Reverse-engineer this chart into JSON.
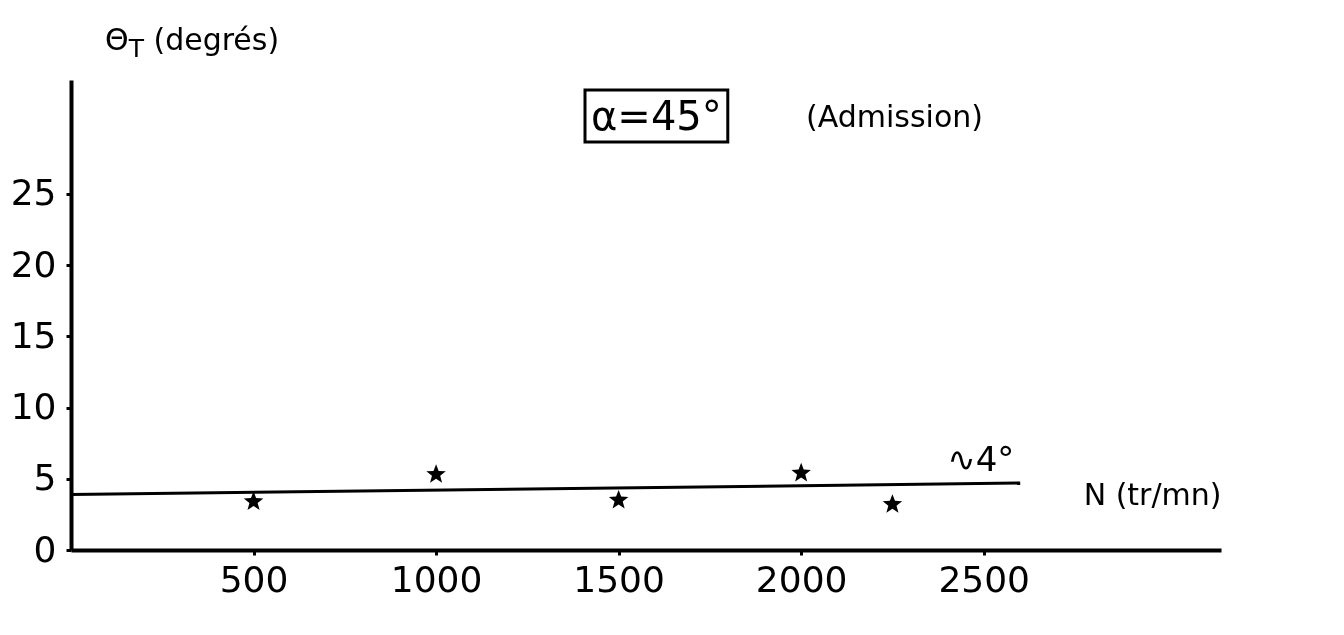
{
  "chart_data": {
    "type": "scatter",
    "xlabel": "N (tr/mn)",
    "ylabel": "Θ$_{T}$ (degrés)",
    "x": [
      500,
      1000,
      1500,
      2000,
      2250
    ],
    "series": [
      {
        "type": "scatter",
        "color": "#000000",
        "marker": "star",
        "values": [
          3.4,
          5.3,
          3.5,
          5.4,
          3.2
        ]
      },
      {
        "type": "line",
        "color": "#000000",
        "x": [
          0,
          2600
        ],
        "values": [
          3.9,
          4.7
        ]
      }
    ],
    "xlim": [
      0,
      3150
    ],
    "ylim": [
      0,
      33
    ],
    "xticks": [
      500,
      1000,
      1500,
      2000,
      2500
    ],
    "yticks": [
      0,
      5,
      10,
      15,
      20,
      25
    ],
    "grid": false,
    "annotations": [
      {
        "text": "∿4°",
        "x": 2400,
        "y": 4.7
      },
      "α=45°",
      "(Admission)"
    ]
  }
}
